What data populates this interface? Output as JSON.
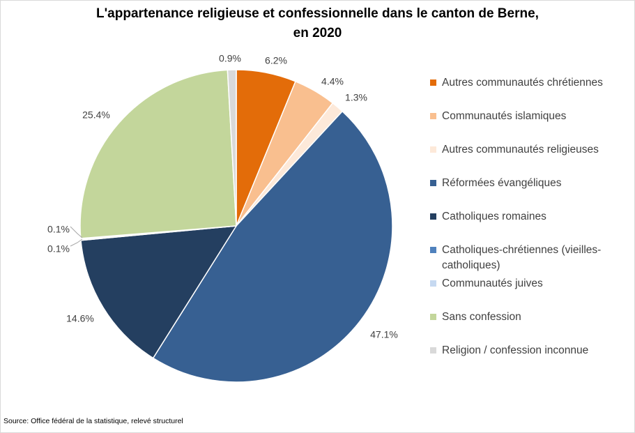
{
  "chart_data": {
    "type": "pie",
    "title": "L'appartenance religieuse et confessionnelle dans le canton de Berne, en 2020",
    "title_lines": [
      "L'appartenance religieuse et confessionnelle dans le canton de Berne,",
      "en 2020"
    ],
    "categories": [
      "Autres communautés chrétiennes",
      "Communautés islamiques",
      "Autres communautés religieuses",
      "Réformées évangéliques",
      "Catholiques romaines",
      "Catholiques-chrétiennes (vieilles-catholiques)",
      "Communautés juives",
      "Sans confession",
      "Religion / confession inconnue"
    ],
    "legend_lines": [
      [
        "Autres communautés chrétiennes"
      ],
      [
        "Communautés islamiques"
      ],
      [
        "Autres communautés religieuses"
      ],
      [
        "Réformées évangéliques"
      ],
      [
        "Catholiques romaines"
      ],
      [
        "Catholiques-chrétiennes (vieilles-",
        "catholiques)"
      ],
      [
        "Communautés juives"
      ],
      [
        "Sans confession"
      ],
      [
        "Religion / confession inconnue"
      ]
    ],
    "values": [
      6.2,
      4.4,
      1.3,
      47.1,
      14.6,
      0.1,
      0.1,
      25.4,
      0.9
    ],
    "data_labels": [
      "6.2%",
      "4.4%",
      "1.3%",
      "47.1%",
      "14.6%",
      "0.1%",
      "0.1%",
      "25.4%",
      "0.9%"
    ],
    "colors": [
      "#e36c09",
      "#f9bf8f",
      "#fde9d9",
      "#376092",
      "#243f60",
      "#4f81bd",
      "#c6d9f1",
      "#c3d69b",
      "#d9d9d9"
    ],
    "legend_position": "right"
  },
  "source": "Source: Office fédéral de la statistique, relevé structurel"
}
